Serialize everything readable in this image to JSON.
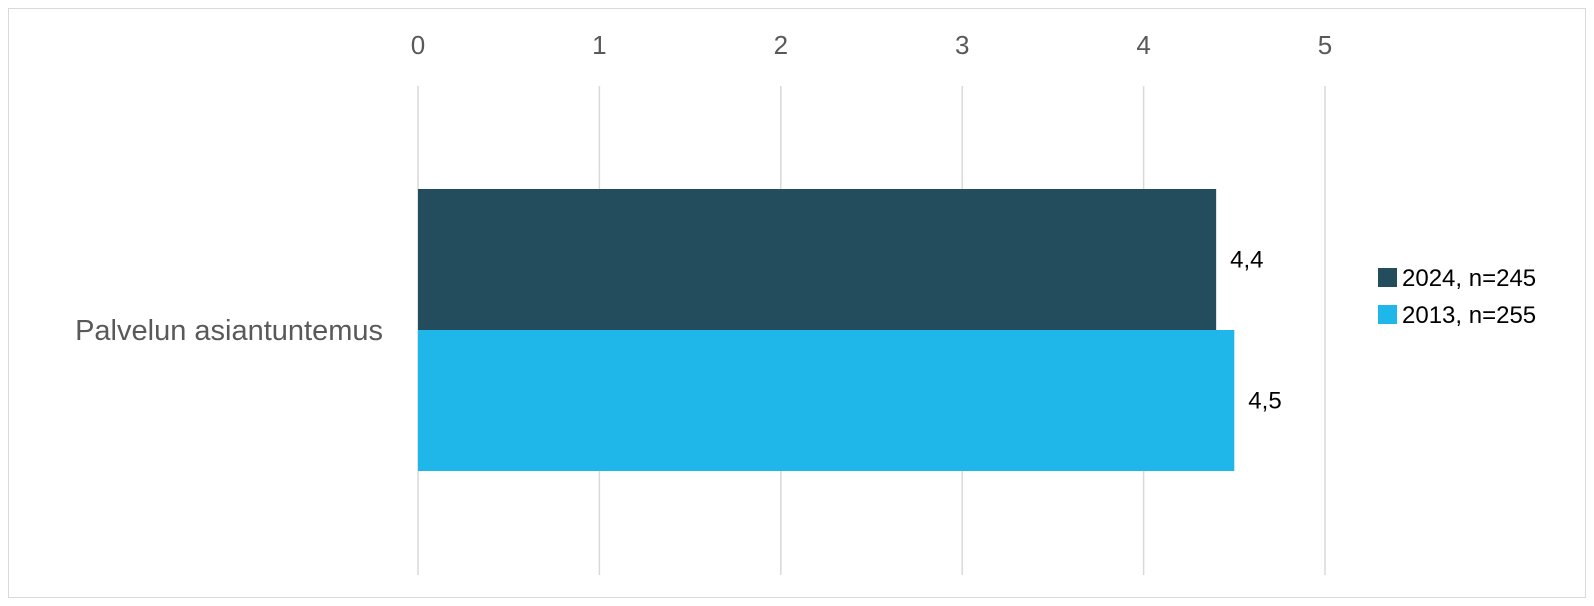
{
  "chart_data": {
    "type": "bar",
    "orientation": "horizontal",
    "categories": [
      "Palvelun asiantuntemus"
    ],
    "series": [
      {
        "name": "2024, n=245",
        "values": [
          4.4
        ],
        "labels": [
          "4,4"
        ],
        "color": "#234d5c"
      },
      {
        "name": "2013, n=255",
        "values": [
          4.5
        ],
        "labels": [
          "4,5"
        ],
        "color": "#1fb6e9"
      }
    ],
    "xlim": [
      0,
      5
    ],
    "xticks": [
      "0",
      "1",
      "2",
      "3",
      "4",
      "5"
    ],
    "x_axis_position": "top",
    "grid": true,
    "legend_position": "right",
    "title": "",
    "xlabel": "",
    "ylabel": ""
  }
}
